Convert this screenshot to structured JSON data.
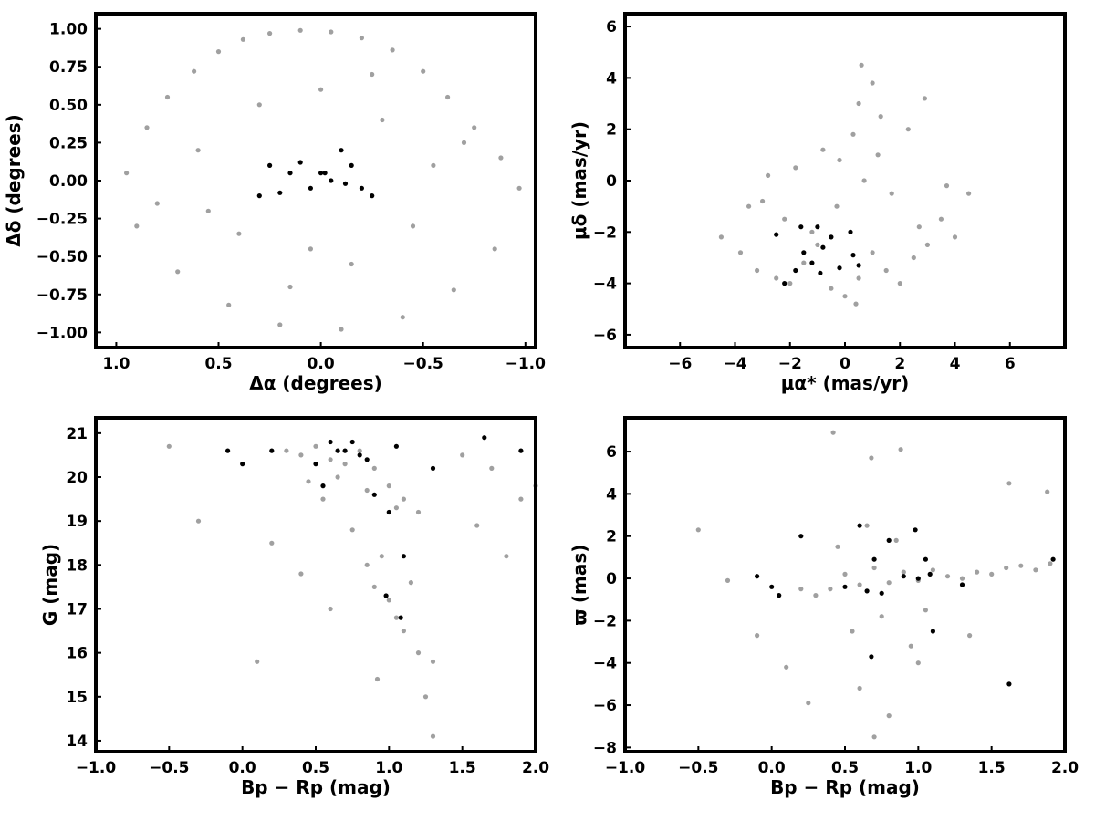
{
  "chart_data": [
    {
      "type": "scatter",
      "xlabel": "Δα (degrees)",
      "ylabel": "Δδ (degrees)",
      "xlim": [
        1.1,
        -1.05
      ],
      "ylim": [
        -1.1,
        1.1
      ],
      "xticks": [
        1.0,
        0.5,
        0.0,
        -0.5,
        -1.0
      ],
      "xtick_labels": [
        "1.0",
        "0.5",
        "0.0",
        "−0.5",
        "−1.0"
      ],
      "yticks": [
        1.0,
        0.75,
        0.5,
        0.25,
        0.0,
        -0.25,
        -0.5,
        -0.75,
        -1.0
      ],
      "ytick_labels": [
        "1.00",
        "0.75",
        "0.50",
        "0.25",
        "0.00",
        "−0.25",
        "−0.50",
        "−0.75",
        "−1.00"
      ],
      "grid": false,
      "series": [
        {
          "color": "#a0a0a0",
          "x": [
            0.95,
            0.85,
            0.75,
            0.62,
            0.5,
            0.38,
            0.25,
            0.1,
            -0.05,
            -0.2,
            -0.35,
            -0.5,
            -0.62,
            -0.75,
            -0.88,
            -0.97,
            0.9,
            0.7,
            0.45,
            0.2,
            -0.1,
            -0.4,
            -0.65,
            -0.85,
            0.6,
            0.3,
            0.0,
            -0.3,
            -0.55,
            0.8,
            0.4,
            -0.15,
            -0.7,
            0.15,
            -0.45,
            0.55,
            -0.25,
            0.05
          ],
          "y": [
            0.05,
            0.35,
            0.55,
            0.72,
            0.85,
            0.93,
            0.97,
            0.99,
            0.98,
            0.94,
            0.86,
            0.72,
            0.55,
            0.35,
            0.15,
            -0.05,
            -0.3,
            -0.6,
            -0.82,
            -0.95,
            -0.98,
            -0.9,
            -0.72,
            -0.45,
            0.2,
            0.5,
            0.6,
            0.4,
            0.1,
            -0.15,
            -0.35,
            -0.55,
            0.25,
            -0.7,
            -0.3,
            -0.2,
            0.7,
            -0.45
          ]
        },
        {
          "color": "#000000",
          "x": [
            0.25,
            0.15,
            0.05,
            0.0,
            -0.05,
            -0.1,
            -0.15,
            -0.2,
            -0.25,
            0.3,
            0.2,
            0.1,
            -0.12,
            -0.02
          ],
          "y": [
            0.1,
            0.05,
            -0.05,
            0.05,
            0.0,
            0.2,
            0.1,
            -0.05,
            -0.1,
            -0.1,
            -0.08,
            0.12,
            -0.02,
            0.05
          ]
        }
      ]
    },
    {
      "type": "scatter",
      "xlabel": "μα* (mas/yr)",
      "ylabel": "μδ (mas/yr)",
      "xlim": [
        -8,
        8
      ],
      "ylim": [
        -6.5,
        6.5
      ],
      "xticks": [
        -6,
        -4,
        -2,
        0,
        2,
        4,
        6
      ],
      "xtick_labels": [
        "−6",
        "−4",
        "−2",
        "0",
        "2",
        "4",
        "6"
      ],
      "yticks": [
        -6,
        -4,
        -2,
        0,
        2,
        4,
        6
      ],
      "ytick_labels": [
        "−6",
        "−4",
        "−2",
        "0",
        "2",
        "4",
        "6"
      ],
      "grid": false,
      "series": [
        {
          "color": "#a0a0a0",
          "x": [
            -4.5,
            -3.8,
            -3.2,
            -2.5,
            -2.0,
            -1.5,
            -1.0,
            -0.5,
            0.0,
            0.5,
            1.0,
            1.5,
            2.0,
            2.5,
            3.0,
            3.5,
            4.0,
            4.5,
            -3.0,
            -2.2,
            -1.2,
            -0.3,
            0.7,
            1.7,
            2.7,
            3.7,
            -1.8,
            -0.8,
            0.3,
            1.3,
            2.3,
            -2.8,
            0.5,
            1.0,
            -0.2,
            0.6,
            2.9,
            -3.5,
            0.4,
            1.2
          ],
          "y": [
            -2.2,
            -2.8,
            -3.5,
            -3.8,
            -4.0,
            -3.2,
            -2.5,
            -4.2,
            -4.5,
            -3.8,
            -2.8,
            -3.5,
            -4.0,
            -3.0,
            -2.5,
            -1.5,
            -2.2,
            -0.5,
            -0.8,
            -1.5,
            -2.0,
            -1.0,
            0.0,
            -0.5,
            -1.8,
            -0.2,
            0.5,
            1.2,
            1.8,
            2.5,
            2.0,
            0.2,
            3.0,
            3.8,
            0.8,
            4.5,
            3.2,
            -1.0,
            -4.8,
            1.0
          ]
        },
        {
          "color": "#000000",
          "x": [
            -2.2,
            -1.8,
            -1.5,
            -1.2,
            -1.0,
            -0.8,
            -0.5,
            -0.2,
            0.2,
            0.5,
            -2.5,
            -1.6,
            -0.9,
            0.3
          ],
          "y": [
            -4.0,
            -3.5,
            -2.8,
            -3.2,
            -1.8,
            -2.6,
            -2.2,
            -3.4,
            -2.0,
            -3.3,
            -2.1,
            -1.8,
            -3.6,
            -2.9
          ]
        }
      ]
    },
    {
      "type": "scatter",
      "xlabel": "Bp − Rp (mag)",
      "ylabel": "G (mag)",
      "xlim": [
        -1.0,
        2.0
      ],
      "ylim": [
        13.75,
        21.35
      ],
      "xticks": [
        -1.0,
        -0.5,
        0.0,
        0.5,
        1.0,
        1.5,
        2.0
      ],
      "xtick_labels": [
        "−1.0",
        "−0.5",
        "0.0",
        "0.5",
        "1.0",
        "1.5",
        "2.0"
      ],
      "yticks": [
        14,
        15,
        16,
        17,
        18,
        19,
        20,
        21
      ],
      "ytick_labels": [
        "14",
        "15",
        "16",
        "17",
        "18",
        "19",
        "20",
        "21"
      ],
      "grid": false,
      "series": [
        {
          "color": "#a0a0a0",
          "x": [
            0.3,
            0.4,
            0.5,
            0.6,
            0.7,
            0.8,
            0.9,
            1.0,
            1.1,
            1.2,
            0.45,
            0.65,
            0.85,
            1.05,
            0.55,
            0.75,
            0.95,
            1.15,
            0.85,
            0.9,
            1.0,
            1.05,
            1.1,
            1.2,
            1.3,
            0.6,
            0.4,
            0.2,
            0.1,
            -0.5,
            -0.3,
            1.5,
            1.7,
            1.9,
            2.0,
            1.6,
            1.8,
            1.3,
            1.25,
            0.92
          ],
          "y": [
            20.6,
            20.5,
            20.7,
            20.4,
            20.3,
            20.6,
            20.2,
            19.8,
            19.5,
            19.2,
            19.9,
            20.0,
            19.7,
            19.3,
            19.5,
            18.8,
            18.2,
            17.6,
            18.0,
            17.5,
            17.2,
            16.8,
            16.5,
            16.0,
            15.8,
            17.0,
            17.8,
            18.5,
            15.8,
            20.7,
            19.0,
            20.5,
            20.2,
            19.5,
            19.8,
            18.9,
            18.2,
            14.1,
            15.0,
            15.4
          ]
        },
        {
          "color": "#000000",
          "x": [
            -0.1,
            0.0,
            0.2,
            0.5,
            0.6,
            0.65,
            0.7,
            0.75,
            0.8,
            0.9,
            1.0,
            1.05,
            1.1,
            1.3,
            1.65,
            1.9,
            0.55,
            0.85,
            0.98,
            1.08
          ],
          "y": [
            20.6,
            20.3,
            20.6,
            20.3,
            20.8,
            20.6,
            20.6,
            20.8,
            20.5,
            19.6,
            19.2,
            20.7,
            18.2,
            20.2,
            20.9,
            20.6,
            19.8,
            20.4,
            17.3,
            16.8
          ]
        }
      ]
    },
    {
      "type": "scatter",
      "xlabel": "Bp − Rp (mag)",
      "ylabel": "ϖ (mas)",
      "xlim": [
        -1.0,
        2.0
      ],
      "ylim": [
        -8.2,
        7.6
      ],
      "xticks": [
        -1.0,
        -0.5,
        0.0,
        0.5,
        1.0,
        1.5,
        2.0
      ],
      "xtick_labels": [
        "−1.0",
        "−0.5",
        "0.0",
        "0.5",
        "1.0",
        "1.5",
        "2.0"
      ],
      "yticks": [
        -8,
        -6,
        -4,
        -2,
        0,
        2,
        4,
        6
      ],
      "ytick_labels": [
        "−8",
        "−6",
        "−4",
        "−2",
        "0",
        "2",
        "4",
        "6"
      ],
      "grid": false,
      "series": [
        {
          "color": "#a0a0a0",
          "x": [
            0.4,
            0.5,
            0.6,
            0.7,
            0.8,
            0.9,
            1.0,
            1.1,
            1.2,
            1.3,
            1.4,
            1.5,
            1.6,
            1.7,
            1.8,
            1.9,
            0.45,
            0.65,
            0.85,
            1.05,
            0.55,
            0.75,
            0.95,
            0.3,
            0.2,
            -0.5,
            -0.3,
            -0.1,
            0.1,
            0.42,
            0.68,
            0.88,
            1.35,
            1.62,
            1.88,
            0.6,
            0.8,
            1.0,
            0.7,
            0.25
          ],
          "y": [
            -0.5,
            0.2,
            -0.3,
            0.5,
            -0.2,
            0.3,
            -0.1,
            0.4,
            0.1,
            0.0,
            0.3,
            0.2,
            0.5,
            0.6,
            0.4,
            0.7,
            1.5,
            2.5,
            1.8,
            -1.5,
            -2.5,
            -1.8,
            -3.2,
            -0.8,
            -0.5,
            2.3,
            -0.1,
            -2.7,
            -4.2,
            6.9,
            5.7,
            6.1,
            -2.7,
            4.5,
            4.1,
            -5.2,
            -6.5,
            -4.0,
            -7.5,
            -5.9
          ]
        },
        {
          "color": "#000000",
          "x": [
            -0.1,
            0.0,
            0.05,
            0.2,
            0.5,
            0.6,
            0.65,
            0.7,
            0.75,
            0.8,
            0.9,
            0.98,
            1.0,
            1.05,
            1.1,
            1.3,
            1.62,
            1.92,
            0.68,
            1.08
          ],
          "y": [
            0.1,
            -0.4,
            -0.8,
            2.0,
            -0.4,
            2.5,
            -0.6,
            0.9,
            -0.7,
            1.8,
            0.1,
            2.3,
            0.0,
            0.9,
            -2.5,
            -0.3,
            -5.0,
            0.9,
            -3.7,
            0.2
          ]
        }
      ]
    }
  ]
}
